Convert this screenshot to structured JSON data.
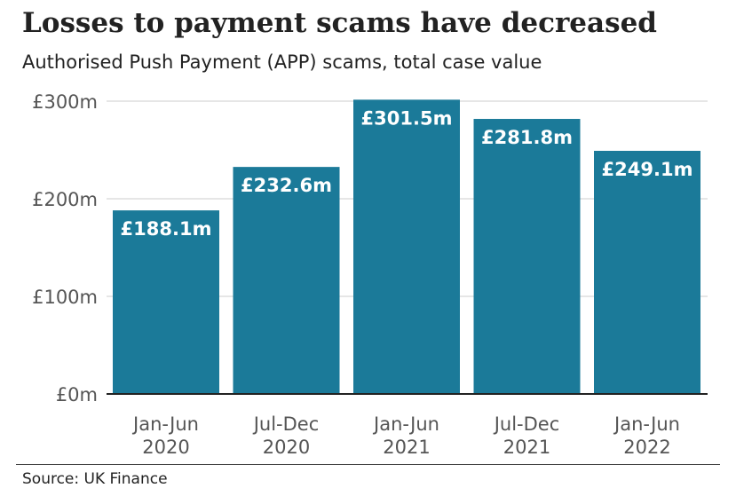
{
  "header": {
    "title": "Losses to payment scams have decreased",
    "subtitle": "Authorised Push Payment (APP) scams, total case value"
  },
  "footer": {
    "source": "Source: UK Finance"
  },
  "colors": {
    "bar": "#1b7a99",
    "grid": "#cccccc",
    "axis": "#222222",
    "tick_text": "#555555",
    "bar_label": "#ffffff"
  },
  "chart_data": {
    "type": "bar",
    "title": "Losses to payment scams have decreased",
    "subtitle": "Authorised Push Payment (APP) scams, total case value",
    "categories": [
      [
        "Jan-Jun",
        "2020"
      ],
      [
        "Jul-Dec",
        "2020"
      ],
      [
        "Jan-Jun",
        "2021"
      ],
      [
        "Jul-Dec",
        "2021"
      ],
      [
        "Jan-Jun",
        "2022"
      ]
    ],
    "values": [
      188.1,
      232.6,
      301.5,
      281.8,
      249.1
    ],
    "value_labels": [
      "£188.1m",
      "£232.6m",
      "£301.5m",
      "£281.8m",
      "£249.1m"
    ],
    "y_ticks": [
      0,
      100,
      200,
      300
    ],
    "y_tick_labels": [
      "£0m",
      "£100m",
      "£200m",
      "£300m"
    ],
    "ylim": [
      0,
      300
    ],
    "unit": "£m",
    "grid": true,
    "legend": "none"
  }
}
